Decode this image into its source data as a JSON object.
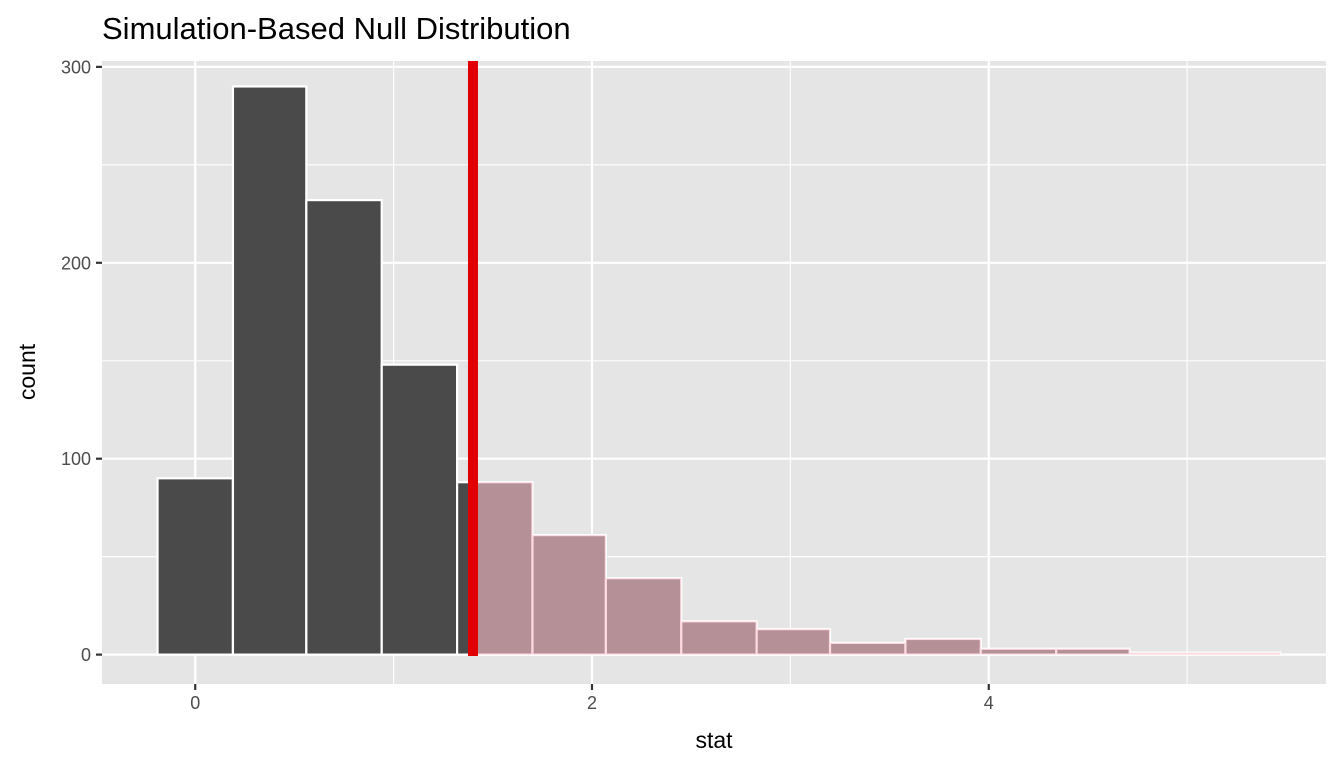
{
  "chart_data": {
    "type": "bar",
    "title": "Simulation-Based Null Distribution",
    "xlabel": "stat",
    "ylabel": "count",
    "xlim": [
      -0.47,
      5.7
    ],
    "ylim": [
      -15,
      303
    ],
    "x_ticks": [
      0,
      2,
      4
    ],
    "x_tick_labels": [
      "0",
      "2",
      "4"
    ],
    "y_ticks": [
      0,
      100,
      200,
      300
    ],
    "y_tick_labels": [
      "0",
      "100",
      "200",
      "300"
    ],
    "grid": true,
    "bin_width": 0.377,
    "bins": [
      {
        "x_start": -0.19,
        "x_end": 0.19,
        "count": 90
      },
      {
        "x_start": 0.19,
        "x_end": 0.56,
        "count": 290
      },
      {
        "x_start": 0.56,
        "x_end": 0.94,
        "count": 232
      },
      {
        "x_start": 0.94,
        "x_end": 1.32,
        "count": 148
      },
      {
        "x_start": 1.32,
        "x_end": 1.7,
        "count": 88
      },
      {
        "x_start": 1.7,
        "x_end": 2.07,
        "count": 61
      },
      {
        "x_start": 2.07,
        "x_end": 2.45,
        "count": 39
      },
      {
        "x_start": 2.45,
        "x_end": 2.83,
        "count": 17
      },
      {
        "x_start": 2.83,
        "x_end": 3.2,
        "count": 13
      },
      {
        "x_start": 3.2,
        "x_end": 3.58,
        "count": 6
      },
      {
        "x_start": 3.58,
        "x_end": 3.96,
        "count": 8
      },
      {
        "x_start": 3.96,
        "x_end": 4.34,
        "count": 3
      },
      {
        "x_start": 4.34,
        "x_end": 4.71,
        "count": 3
      },
      {
        "x_start": 4.71,
        "x_end": 5.09,
        "count": 1
      },
      {
        "x_start": 5.09,
        "x_end": 5.47,
        "count": 1
      }
    ],
    "observed_stat": 1.4,
    "shade_direction": "right",
    "colors": {
      "panel_background": "#e5e5e5",
      "grid": "#ffffff",
      "bar_fill": "#4a4a4a",
      "bar_outline": "#ffffff",
      "shade_fill": "#ffc0cb",
      "shade_opacity": 0.6,
      "observed_line": "#e00000"
    }
  }
}
